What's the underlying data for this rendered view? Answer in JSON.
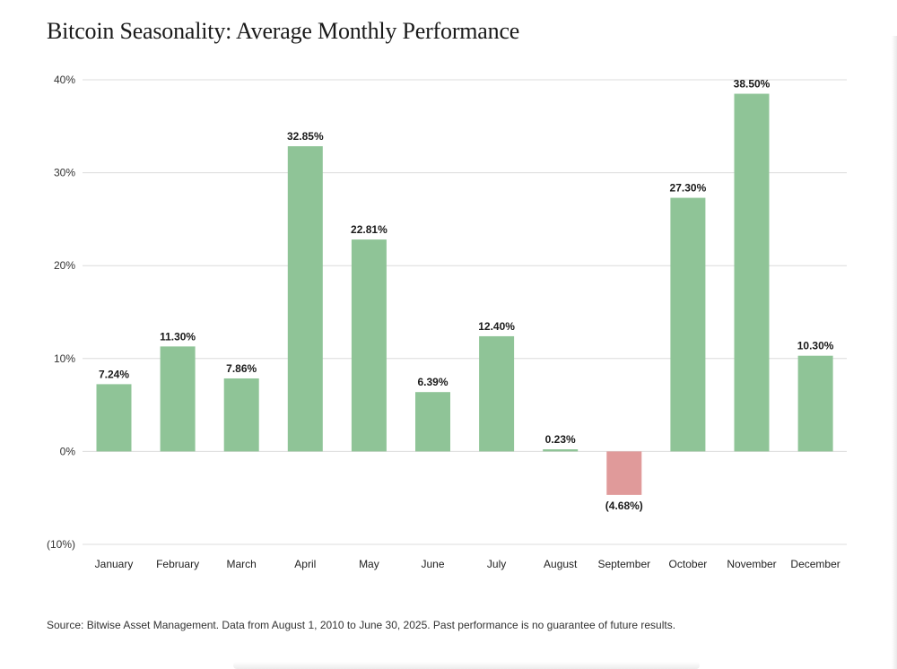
{
  "title": "Bitcoin Seasonality: Average Monthly Performance",
  "source": "Source: Bitwise Asset Management. Data from August 1, 2010 to June 30, 2025. Past performance is no guarantee of future results.",
  "colors": {
    "positive": "#8fc497",
    "negative": "#e09a9a",
    "grid": "#dcdcdc",
    "text": "#1a1a1a"
  },
  "chart_data": {
    "type": "bar",
    "title": "Bitcoin Seasonality: Average Monthly Performance",
    "xlabel": "",
    "ylabel": "",
    "ylim": [
      -10,
      40
    ],
    "yticks": [
      -10,
      0,
      10,
      20,
      30,
      40
    ],
    "ytick_labels": [
      "(10%)",
      "0%",
      "10%",
      "20%",
      "30%",
      "40%"
    ],
    "grid": true,
    "categories": [
      "January",
      "February",
      "March",
      "April",
      "May",
      "June",
      "July",
      "August",
      "September",
      "October",
      "November",
      "December"
    ],
    "values": [
      7.24,
      11.3,
      7.86,
      32.85,
      22.81,
      6.39,
      12.4,
      0.23,
      -4.68,
      27.3,
      38.5,
      10.3
    ],
    "value_labels": [
      "7.24%",
      "11.30%",
      "7.86%",
      "32.85%",
      "22.81%",
      "6.39%",
      "12.40%",
      "0.23%",
      "(4.68%)",
      "27.30%",
      "38.50%",
      "10.30%"
    ]
  }
}
